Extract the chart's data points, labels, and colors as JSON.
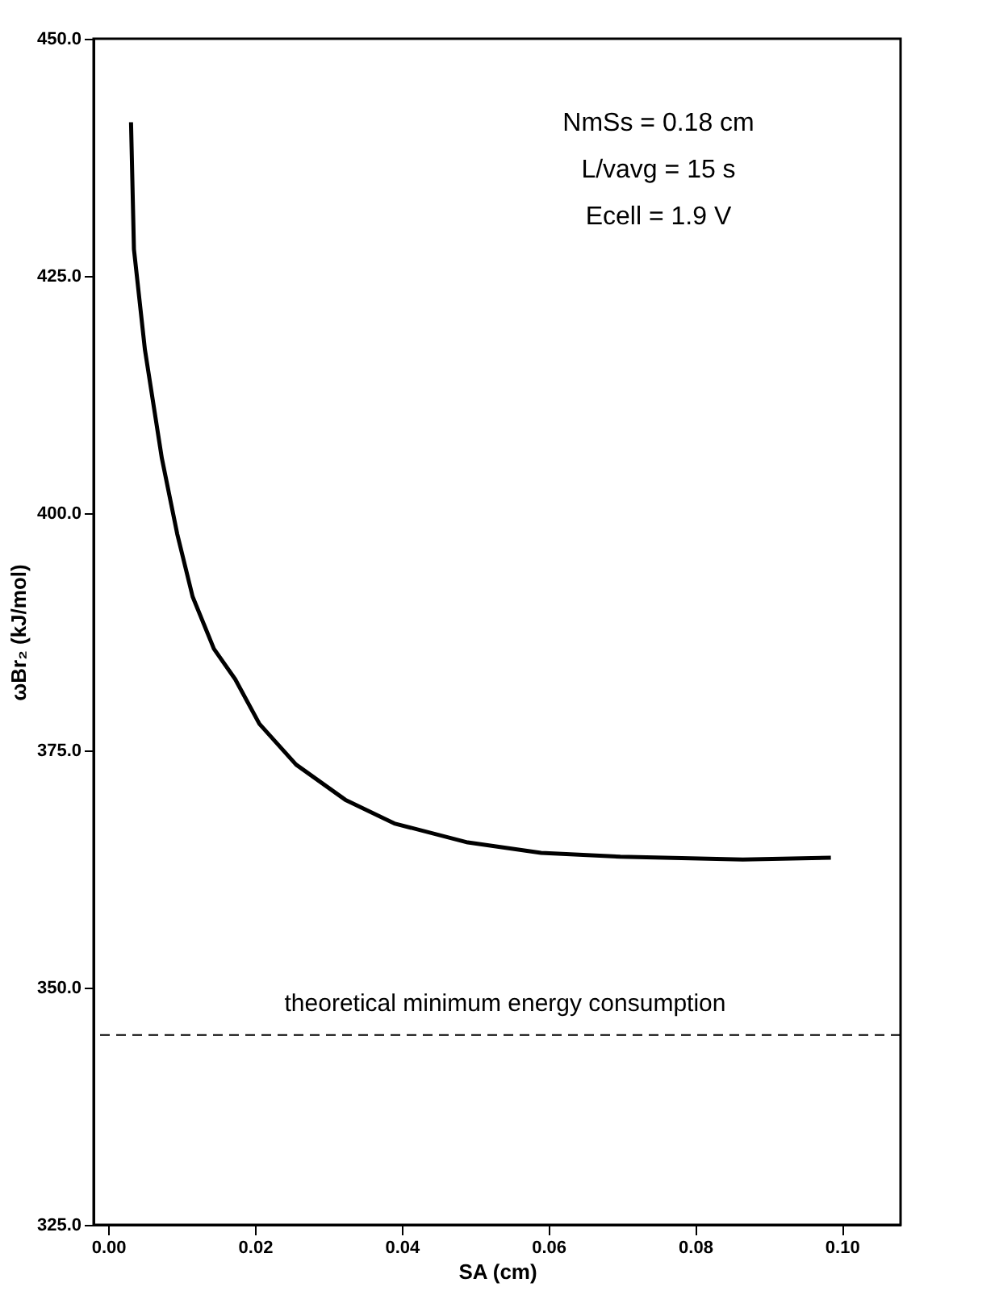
{
  "chart_data": {
    "type": "line",
    "xlabel": "SA (cm)",
    "ylabel": "ωBr₂ (kJ/mol)",
    "x": [
      0.0031,
      0.0035,
      0.005,
      0.0073,
      0.0094,
      0.0115,
      0.0144,
      0.0173,
      0.0206,
      0.0256,
      0.0323,
      0.039,
      0.049,
      0.059,
      0.0698,
      0.0865,
      0.0985
    ],
    "series": [
      {
        "color": "#000000",
        "values": [
          441.2,
          427.8,
          417.2,
          405.8,
          397.8,
          391.2,
          385.7,
          382.5,
          377.8,
          373.5,
          369.8,
          367.3,
          365.3,
          364.2,
          363.8,
          363.5,
          363.7
        ]
      }
    ],
    "xlim": [
      -0.002,
      0.108
    ],
    "xticks": [
      {
        "value": 0,
        "label": "0.00"
      },
      {
        "value": 0.02,
        "label": "0.02"
      },
      {
        "value": 0.04,
        "label": "0.04"
      },
      {
        "value": 0.06,
        "label": "0.06"
      },
      {
        "value": 0.08,
        "label": "0.08"
      },
      {
        "value": 0.1,
        "label": "0.10"
      }
    ],
    "ylim": [
      325,
      450
    ],
    "yticks": [
      {
        "value": 325,
        "label": "325.0"
      },
      {
        "value": 350,
        "label": "350.0"
      },
      {
        "value": 375,
        "label": "375.0"
      },
      {
        "value": 400,
        "label": "400.0"
      },
      {
        "value": 425,
        "label": "425.0"
      },
      {
        "value": 450,
        "label": "450.0"
      }
    ],
    "ref_lines": [
      {
        "axis": "y",
        "value": 345,
        "label": "theoretical minimum energy consumption",
        "color": "#000000",
        "line_style": "dashed"
      }
    ],
    "annotations": [
      "NmSs = 0.18 cm",
      "L/vavg = 15 s",
      "Ecell = 1.9 V"
    ],
    "grid": false,
    "legend": false,
    "marker": "none",
    "line_style": "solid"
  }
}
